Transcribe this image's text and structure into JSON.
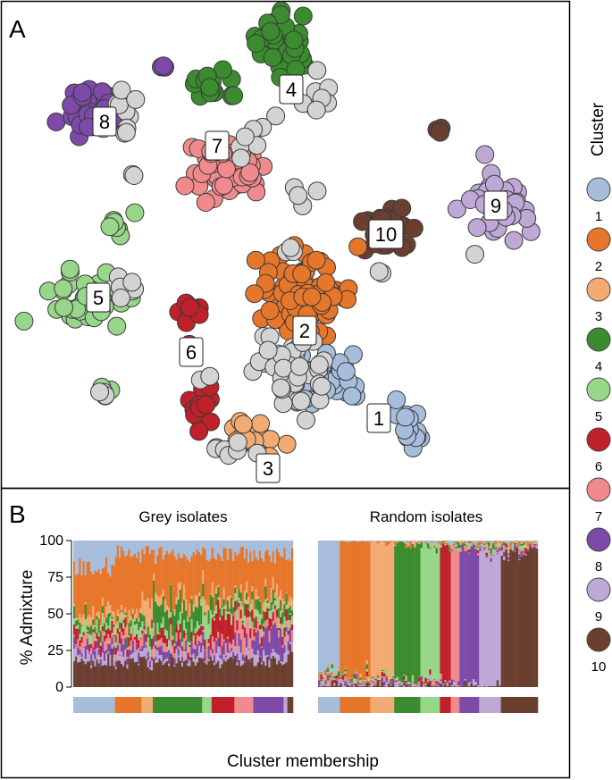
{
  "chart_data": [
    {
      "type": "scatter",
      "panel": "A",
      "description_axes": "none",
      "legend_title": "Cluster",
      "legend": [
        {
          "name": "1",
          "color": "#a6bddb"
        },
        {
          "name": "2",
          "color": "#e6762a"
        },
        {
          "name": "3",
          "color": "#f3ab74"
        },
        {
          "name": "4",
          "color": "#3a8c2e"
        },
        {
          "name": "5",
          "color": "#98d68a"
        },
        {
          "name": "6",
          "color": "#c0202a"
        },
        {
          "name": "7",
          "color": "#f08a8c"
        },
        {
          "name": "8",
          "color": "#7d4aa8"
        },
        {
          "name": "9",
          "color": "#bea8d6"
        },
        {
          "name": "10",
          "color": "#6b3f30"
        }
      ],
      "unassigned_color": "#d3d3d3",
      "cluster_labels": [
        "1",
        "2",
        "3",
        "4",
        "5",
        "6",
        "7",
        "8",
        "9",
        "10"
      ]
    },
    {
      "type": "bar",
      "panel": "B",
      "stacked": true,
      "subtitles": [
        "Grey isolates",
        "Random isolates"
      ],
      "ylabel": "% Admixture",
      "xlabel": "Cluster membership",
      "ylim": [
        0,
        100
      ],
      "yticks": [
        0,
        25,
        50,
        75,
        100
      ]
    }
  ],
  "panel_letters": {
    "a": "A",
    "b": "B"
  }
}
